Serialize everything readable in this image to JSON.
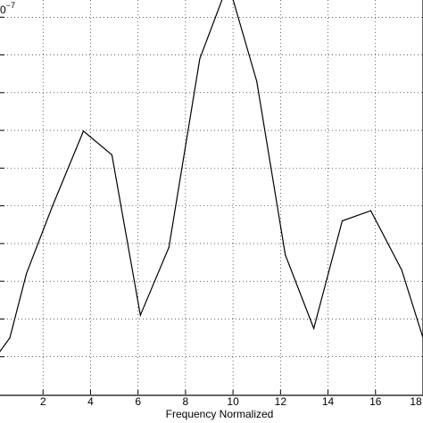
{
  "chart_data": {
    "type": "line",
    "title": "",
    "xlabel": "Frequency Normalized",
    "ylabel": "",
    "exponent_label_fragment": "0",
    "exponent_power": "−7",
    "xlim": [
      0,
      18
    ],
    "ylim": [
      0,
      11
    ],
    "x_ticks": [
      2,
      4,
      6,
      8,
      10,
      12,
      14,
      16,
      18
    ],
    "x_tick_labels": [
      "2",
      "4",
      "6",
      "8",
      "10",
      "12",
      "14",
      "16",
      "18"
    ],
    "y_ticks": [
      1,
      2,
      3,
      4,
      5,
      6,
      7,
      8,
      9,
      10
    ],
    "grid": true,
    "series": [
      {
        "color": "#000000",
        "points": [
          [
            0.0,
            0.98
          ],
          [
            0.6,
            1.5
          ],
          [
            1.3,
            3.2
          ],
          [
            2.4,
            5.0
          ],
          [
            3.7,
            6.98
          ],
          [
            4.9,
            6.35
          ],
          [
            6.1,
            2.1
          ],
          [
            7.3,
            3.9
          ],
          [
            8.6,
            8.9
          ],
          [
            9.8,
            10.9
          ],
          [
            11.0,
            8.3
          ],
          [
            12.2,
            3.7
          ],
          [
            13.4,
            1.75
          ],
          [
            14.6,
            4.6
          ],
          [
            15.8,
            4.87
          ],
          [
            17.1,
            3.3
          ],
          [
            18.0,
            1.5
          ]
        ]
      }
    ]
  }
}
